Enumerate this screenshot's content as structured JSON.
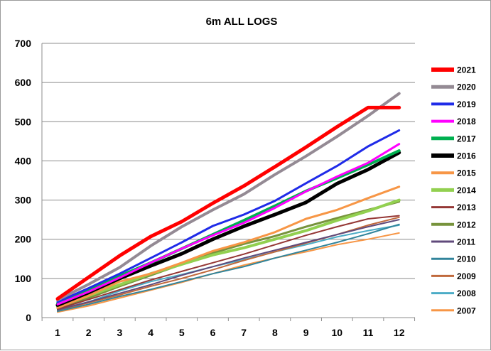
{
  "chart_data": {
    "type": "line",
    "title": "6m ALL LOGS",
    "xlabel": "",
    "ylabel": "",
    "x": [
      1,
      2,
      3,
      4,
      5,
      6,
      7,
      8,
      9,
      10,
      11,
      12
    ],
    "ylim": [
      0,
      700
    ],
    "yticks": [
      0,
      100,
      200,
      300,
      400,
      500,
      600,
      700
    ],
    "grid": true,
    "legend_position": "right",
    "series": [
      {
        "name": "2021",
        "color": "#ff0000",
        "width": 5,
        "values": [
          48,
          103,
          158,
          207,
          245,
          292,
          336,
          385,
          435,
          487,
          536,
          536
        ]
      },
      {
        "name": "2020",
        "color": "#948a94",
        "width": 4,
        "values": [
          45,
          85,
          128,
          183,
          232,
          275,
          315,
          365,
          412,
          462,
          515,
          572
        ]
      },
      {
        "name": "2019",
        "color": "#1f2be8",
        "width": 3,
        "values": [
          40,
          75,
          112,
          152,
          192,
          234,
          263,
          298,
          343,
          387,
          437,
          478
        ]
      },
      {
        "name": "2018",
        "color": "#ff00ff",
        "width": 3,
        "values": [
          34,
          66,
          102,
          140,
          176,
          210,
          242,
          280,
          322,
          360,
          395,
          443
        ]
      },
      {
        "name": "2017",
        "color": "#00b050",
        "width": 4,
        "values": [
          36,
          70,
          106,
          140,
          176,
          212,
          248,
          285,
          323,
          356,
          390,
          426
        ]
      },
      {
        "name": "2016",
        "color": "#000000",
        "width": 5,
        "values": [
          32,
          64,
          100,
          132,
          163,
          200,
          233,
          263,
          294,
          342,
          378,
          421
        ]
      },
      {
        "name": "2015",
        "color": "#f79646",
        "width": 3,
        "values": [
          25,
          56,
          92,
          112,
          140,
          170,
          192,
          218,
          252,
          275,
          305,
          334
        ]
      },
      {
        "name": "2014",
        "color": "#92d050",
        "width": 4,
        "values": [
          28,
          56,
          84,
          112,
          136,
          160,
          178,
          200,
          222,
          248,
          272,
          300
        ]
      },
      {
        "name": "2013",
        "color": "#953735",
        "width": 2,
        "values": [
          22,
          46,
          71,
          96,
          118,
          140,
          162,
          186,
          210,
          232,
          252,
          260
        ]
      },
      {
        "name": "2012",
        "color": "#77933c",
        "width": 3,
        "values": [
          24,
          50,
          80,
          108,
          136,
          165,
          188,
          208,
          232,
          254,
          275,
          296
        ]
      },
      {
        "name": "2011",
        "color": "#604a7b",
        "width": 2,
        "values": [
          20,
          40,
          62,
          84,
          108,
          130,
          152,
          172,
          192,
          212,
          232,
          250
        ]
      },
      {
        "name": "2010",
        "color": "#31849b",
        "width": 2,
        "values": [
          16,
          34,
          54,
          72,
          92,
          112,
          130,
          152,
          172,
          192,
          214,
          238
        ]
      },
      {
        "name": "2009",
        "color": "#c0693c",
        "width": 2,
        "values": [
          18,
          38,
          58,
          80,
          100,
          122,
          146,
          168,
          190,
          212,
          236,
          256
        ]
      },
      {
        "name": "2008",
        "color": "#4bacc6",
        "width": 2,
        "values": [
          20,
          40,
          68,
          92,
          110,
          130,
          148,
          168,
          186,
          206,
          222,
          236
        ]
      },
      {
        "name": "2007",
        "color": "#f79646",
        "width": 2,
        "values": [
          14,
          30,
          50,
          70,
          90,
          112,
          134,
          152,
          168,
          186,
          200,
          216
        ]
      }
    ]
  }
}
